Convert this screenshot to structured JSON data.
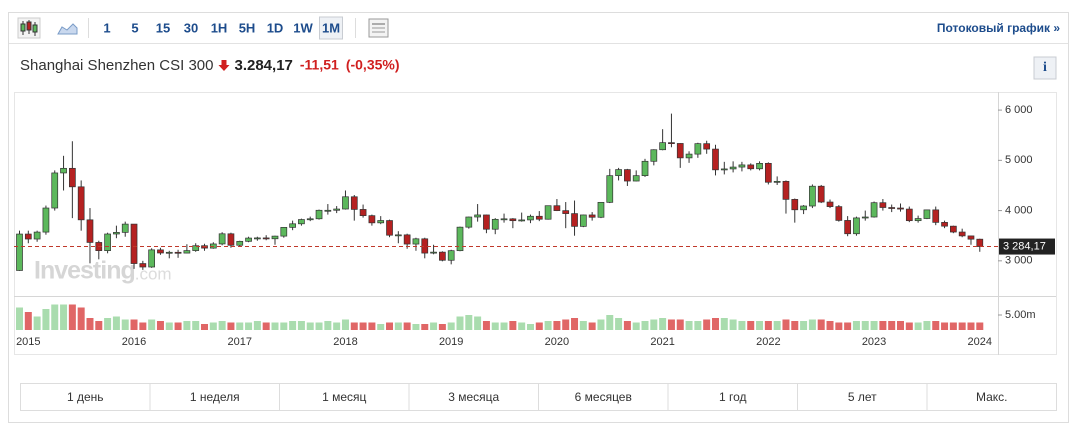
{
  "toolbar": {
    "intervals": [
      "1",
      "5",
      "15",
      "30",
      "1H",
      "5H",
      "1D",
      "1W",
      "1M"
    ],
    "selected": 8,
    "stream_link": "Потоковый график »"
  },
  "header": {
    "title": "Shanghai Shenzhen CSI 300",
    "price": "3.284,17",
    "change": "-11,51",
    "change_percent": "(-0,35%)",
    "info": "i"
  },
  "watermark": {
    "brand": "Investing",
    "suffix": ".com"
  },
  "ranges": [
    "1 день",
    "1 неделя",
    "1 месяц",
    "3 месяца",
    "6 месяцев",
    "1 год",
    "5 лет",
    "Макс."
  ],
  "chart_data": {
    "type": "candlestick",
    "categories": [
      null,
      "2015",
      null,
      null,
      null,
      null,
      null,
      null,
      null,
      null,
      null,
      null,
      null,
      "2016",
      null,
      null,
      null,
      null,
      null,
      null,
      null,
      null,
      null,
      null,
      null,
      "2017",
      null,
      null,
      null,
      null,
      null,
      null,
      null,
      null,
      null,
      null,
      null,
      "2018",
      null,
      null,
      null,
      null,
      null,
      null,
      null,
      null,
      null,
      null,
      null,
      "2019",
      null,
      null,
      null,
      null,
      null,
      null,
      null,
      null,
      null,
      null,
      null,
      "2020",
      null,
      null,
      null,
      null,
      null,
      null,
      null,
      null,
      null,
      null,
      null,
      "2021",
      null,
      null,
      null,
      null,
      null,
      null,
      null,
      null,
      null,
      null,
      null,
      "2022",
      null,
      null,
      null,
      null,
      null,
      null,
      null,
      null,
      null,
      null,
      null,
      "2023",
      null,
      null,
      null,
      null,
      null,
      null,
      null,
      null,
      null,
      null,
      null,
      "2024"
    ],
    "open": [
      2808,
      3533,
      3434,
      3572,
      4051,
      4749,
      4841,
      4473,
      3816,
      3366,
      3203,
      3534,
      3566,
      3731,
      2946,
      2877,
      3218,
      3156,
      3170,
      3154,
      3204,
      3301,
      3253,
      3336,
      3538,
      3310,
      3388,
      3453,
      3456,
      3439,
      3492,
      3666,
      3737,
      3822,
      3837,
      4006,
      4006,
      4031,
      4275,
      4023,
      3899,
      3756,
      3802,
      3510,
      3517,
      3334,
      3438,
      3154,
      3173,
      3011,
      3202,
      3670,
      3872,
      3913,
      3629,
      3826,
      3836,
      3799,
      3814,
      3887,
      3828,
      4097,
      3999,
      3940,
      3686,
      3913,
      3867,
      4164,
      4695,
      4816,
      4588,
      4695,
      4981,
      5211,
      5352,
      5336,
      5049,
      5124,
      5332,
      5224,
      4811,
      4829,
      4866,
      4909,
      4832,
      4940,
      4564,
      4582,
      4223,
      4016,
      4091,
      4485,
      4170,
      4079,
      3804,
      3539,
      3854,
      3872,
      4157,
      4061,
      4051,
      4030,
      3799,
      3842,
      4014,
      3765,
      3690,
      3573,
      3496,
      3431
    ],
    "high": [
      3600,
      3600,
      3600,
      4100,
      4800,
      5090,
      5380,
      4600,
      4050,
      3400,
      3560,
      3700,
      3780,
      3730,
      3000,
      3250,
      3260,
      3200,
      3220,
      3330,
      3350,
      3340,
      3370,
      3570,
      3560,
      3400,
      3480,
      3480,
      3510,
      3500,
      3670,
      3800,
      3840,
      3880,
      4020,
      4130,
      4090,
      4400,
      4310,
      4120,
      3920,
      3890,
      3820,
      3590,
      3540,
      3460,
      3460,
      3320,
      3190,
      3220,
      3680,
      3880,
      4130,
      3920,
      3850,
      3940,
      3850,
      3960,
      3920,
      3990,
      4100,
      4230,
      4170,
      4200,
      3920,
      3970,
      4170,
      4830,
      4850,
      4830,
      4800,
      5030,
      5220,
      5620,
      5930,
      5340,
      5180,
      5350,
      5390,
      5310,
      4970,
      4980,
      4970,
      4940,
      4980,
      4960,
      4680,
      4600,
      4240,
      4110,
      4520,
      4510,
      4220,
      4110,
      3890,
      3880,
      4000,
      4180,
      4230,
      4120,
      4140,
      4080,
      3900,
      4020,
      4080,
      3800,
      3700,
      3640,
      3500,
      3440
    ],
    "low": [
      2800,
      3350,
      3380,
      3520,
      4000,
      4400,
      3850,
      3600,
      2950,
      3030,
      3150,
      3450,
      3480,
      2840,
      2820,
      2860,
      3120,
      3050,
      3060,
      3150,
      3180,
      3200,
      3240,
      3310,
      3260,
      3290,
      3370,
      3400,
      3410,
      3320,
      3460,
      3610,
      3700,
      3790,
      3820,
      3920,
      3950,
      4020,
      3800,
      3860,
      3700,
      3730,
      3470,
      3350,
      3240,
      3200,
      3050,
      3130,
      2990,
      2930,
      3190,
      3640,
      3780,
      3550,
      3530,
      3760,
      3650,
      3780,
      3750,
      3790,
      3820,
      3990,
      3650,
      3500,
      3670,
      3800,
      3850,
      4150,
      4600,
      4490,
      4580,
      4670,
      4900,
      5200,
      5260,
      4850,
      4950,
      5050,
      5130,
      4700,
      4720,
      4760,
      4780,
      4800,
      4800,
      4520,
      4510,
      3940,
      3760,
      3930,
      4050,
      4150,
      4050,
      3780,
      3490,
      3500,
      3800,
      3860,
      4000,
      3970,
      3980,
      3770,
      3760,
      3830,
      3710,
      3650,
      3550,
      3470,
      3320,
      3180
    ],
    "close": [
      3533,
      3434,
      3572,
      4051,
      4749,
      4841,
      4473,
      3816,
      3366,
      3203,
      3534,
      3566,
      3731,
      2946,
      2877,
      3218,
      3156,
      3170,
      3154,
      3204,
      3301,
      3253,
      3336,
      3538,
      3310,
      3388,
      3453,
      3456,
      3439,
      3492,
      3666,
      3737,
      3822,
      3837,
      4006,
      4006,
      4031,
      4275,
      4023,
      3899,
      3756,
      3802,
      3510,
      3517,
      3334,
      3438,
      3154,
      3173,
      3011,
      3202,
      3670,
      3872,
      3913,
      3629,
      3826,
      3836,
      3799,
      3814,
      3887,
      3828,
      4097,
      3999,
      3940,
      3686,
      3913,
      3867,
      4164,
      4695,
      4816,
      4588,
      4695,
      4981,
      5211,
      5352,
      5336,
      5049,
      5124,
      5332,
      5224,
      4811,
      4829,
      4866,
      4909,
      4832,
      4940,
      4564,
      4582,
      4223,
      4016,
      4091,
      4485,
      4170,
      4079,
      3804,
      3539,
      3854,
      3872,
      4157,
      4061,
      4051,
      4030,
      3799,
      3842,
      4014,
      3765,
      3690,
      3573,
      3496,
      3431,
      3284.17
    ],
    "volume": [
      7500000,
      6000000,
      4500000,
      7000000,
      8500000,
      8500000,
      8500000,
      7500000,
      4000000,
      3000000,
      4000000,
      4500000,
      3500000,
      3500000,
      2500000,
      3500000,
      3000000,
      2500000,
      2500000,
      3000000,
      3000000,
      2000000,
      2500000,
      3000000,
      2500000,
      2500000,
      2500000,
      3000000,
      2500000,
      2500000,
      2500000,
      3000000,
      3000000,
      2500000,
      2500000,
      3000000,
      2500000,
      3500000,
      2500000,
      2500000,
      2500000,
      2000000,
      2500000,
      2500000,
      2500000,
      2000000,
      2000000,
      2500000,
      2000000,
      2500000,
      4500000,
      5000000,
      4500000,
      3000000,
      2500000,
      2500000,
      3000000,
      2500000,
      2000000,
      2500000,
      3000000,
      3000000,
      3500000,
      4000000,
      3000000,
      2500000,
      3500000,
      5000000,
      4000000,
      3000000,
      2500000,
      3000000,
      3500000,
      4000000,
      3500000,
      3500000,
      3000000,
      3000000,
      3500000,
      4000000,
      4000000,
      3500000,
      3000000,
      3000000,
      3000000,
      3000000,
      3000000,
      3500000,
      3000000,
      3000000,
      3500000,
      3500000,
      3000000,
      2500000,
      2500000,
      3000000,
      3000000,
      3000000,
      3000000,
      3000000,
      3000000,
      2500000,
      2500000,
      3000000,
      3000000,
      2500000,
      2500000,
      2500000,
      2500000,
      2500000
    ],
    "ylim": [
      2300,
      6360
    ],
    "yticks": [
      {
        "value": 3000,
        "label": "3 000"
      },
      {
        "value": 4000,
        "label": "4 000"
      },
      {
        "value": 5000,
        "label": "5 000"
      },
      {
        "value": 6000,
        "label": "6 000"
      }
    ],
    "volume_ylim": [
      0,
      10000000
    ],
    "volume_yticks": [
      {
        "value": 5000000,
        "label": "5.00m"
      }
    ],
    "price_marker": {
      "value": 3284.17,
      "label": "3 284,17"
    },
    "up_color": "#5cb85c",
    "down_color": "#b52121",
    "volume_up_color": "#a9dcae",
    "volume_down_color": "#e06666",
    "grid": false
  }
}
